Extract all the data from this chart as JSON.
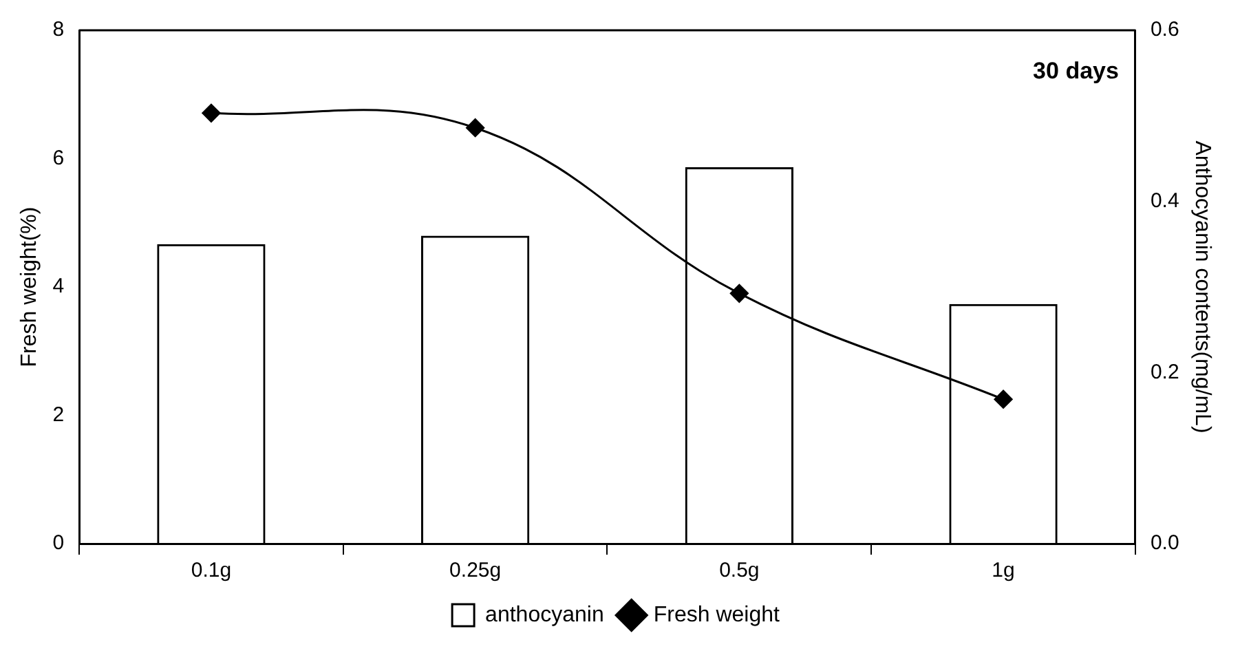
{
  "chart_data": {
    "type": "bar",
    "categories": [
      "0.1g",
      "0.25g",
      "0.5g",
      "1g"
    ],
    "series": [
      {
        "name": "anthocyanin",
        "axis": "y2",
        "color": "#000000",
        "values": [
          0.35,
          0.36,
          0.44,
          0.28
        ]
      },
      {
        "name": "Fresh weight",
        "type": "line",
        "color": "#000000",
        "marker": "diamond",
        "values": [
          6.71,
          6.48,
          3.9,
          2.25
        ]
      }
    ],
    "ylabel": "Fresh weight(%)",
    "y2label": "Anthocyanin contents(mg/mL)",
    "ylim": [
      0,
      8
    ],
    "yticks": [
      0,
      2,
      4,
      6,
      8
    ],
    "y2lim": [
      0,
      0.6
    ],
    "y2ticks": [
      {
        "value": 0,
        "label": "0.0"
      },
      {
        "value": 0.2,
        "label": "0.2"
      },
      {
        "value": 0.4,
        "label": "0.4"
      },
      {
        "value": 0.6,
        "label": "0.6"
      }
    ],
    "annotations": [
      "30 days"
    ],
    "legend": "bottom",
    "grid": false
  }
}
